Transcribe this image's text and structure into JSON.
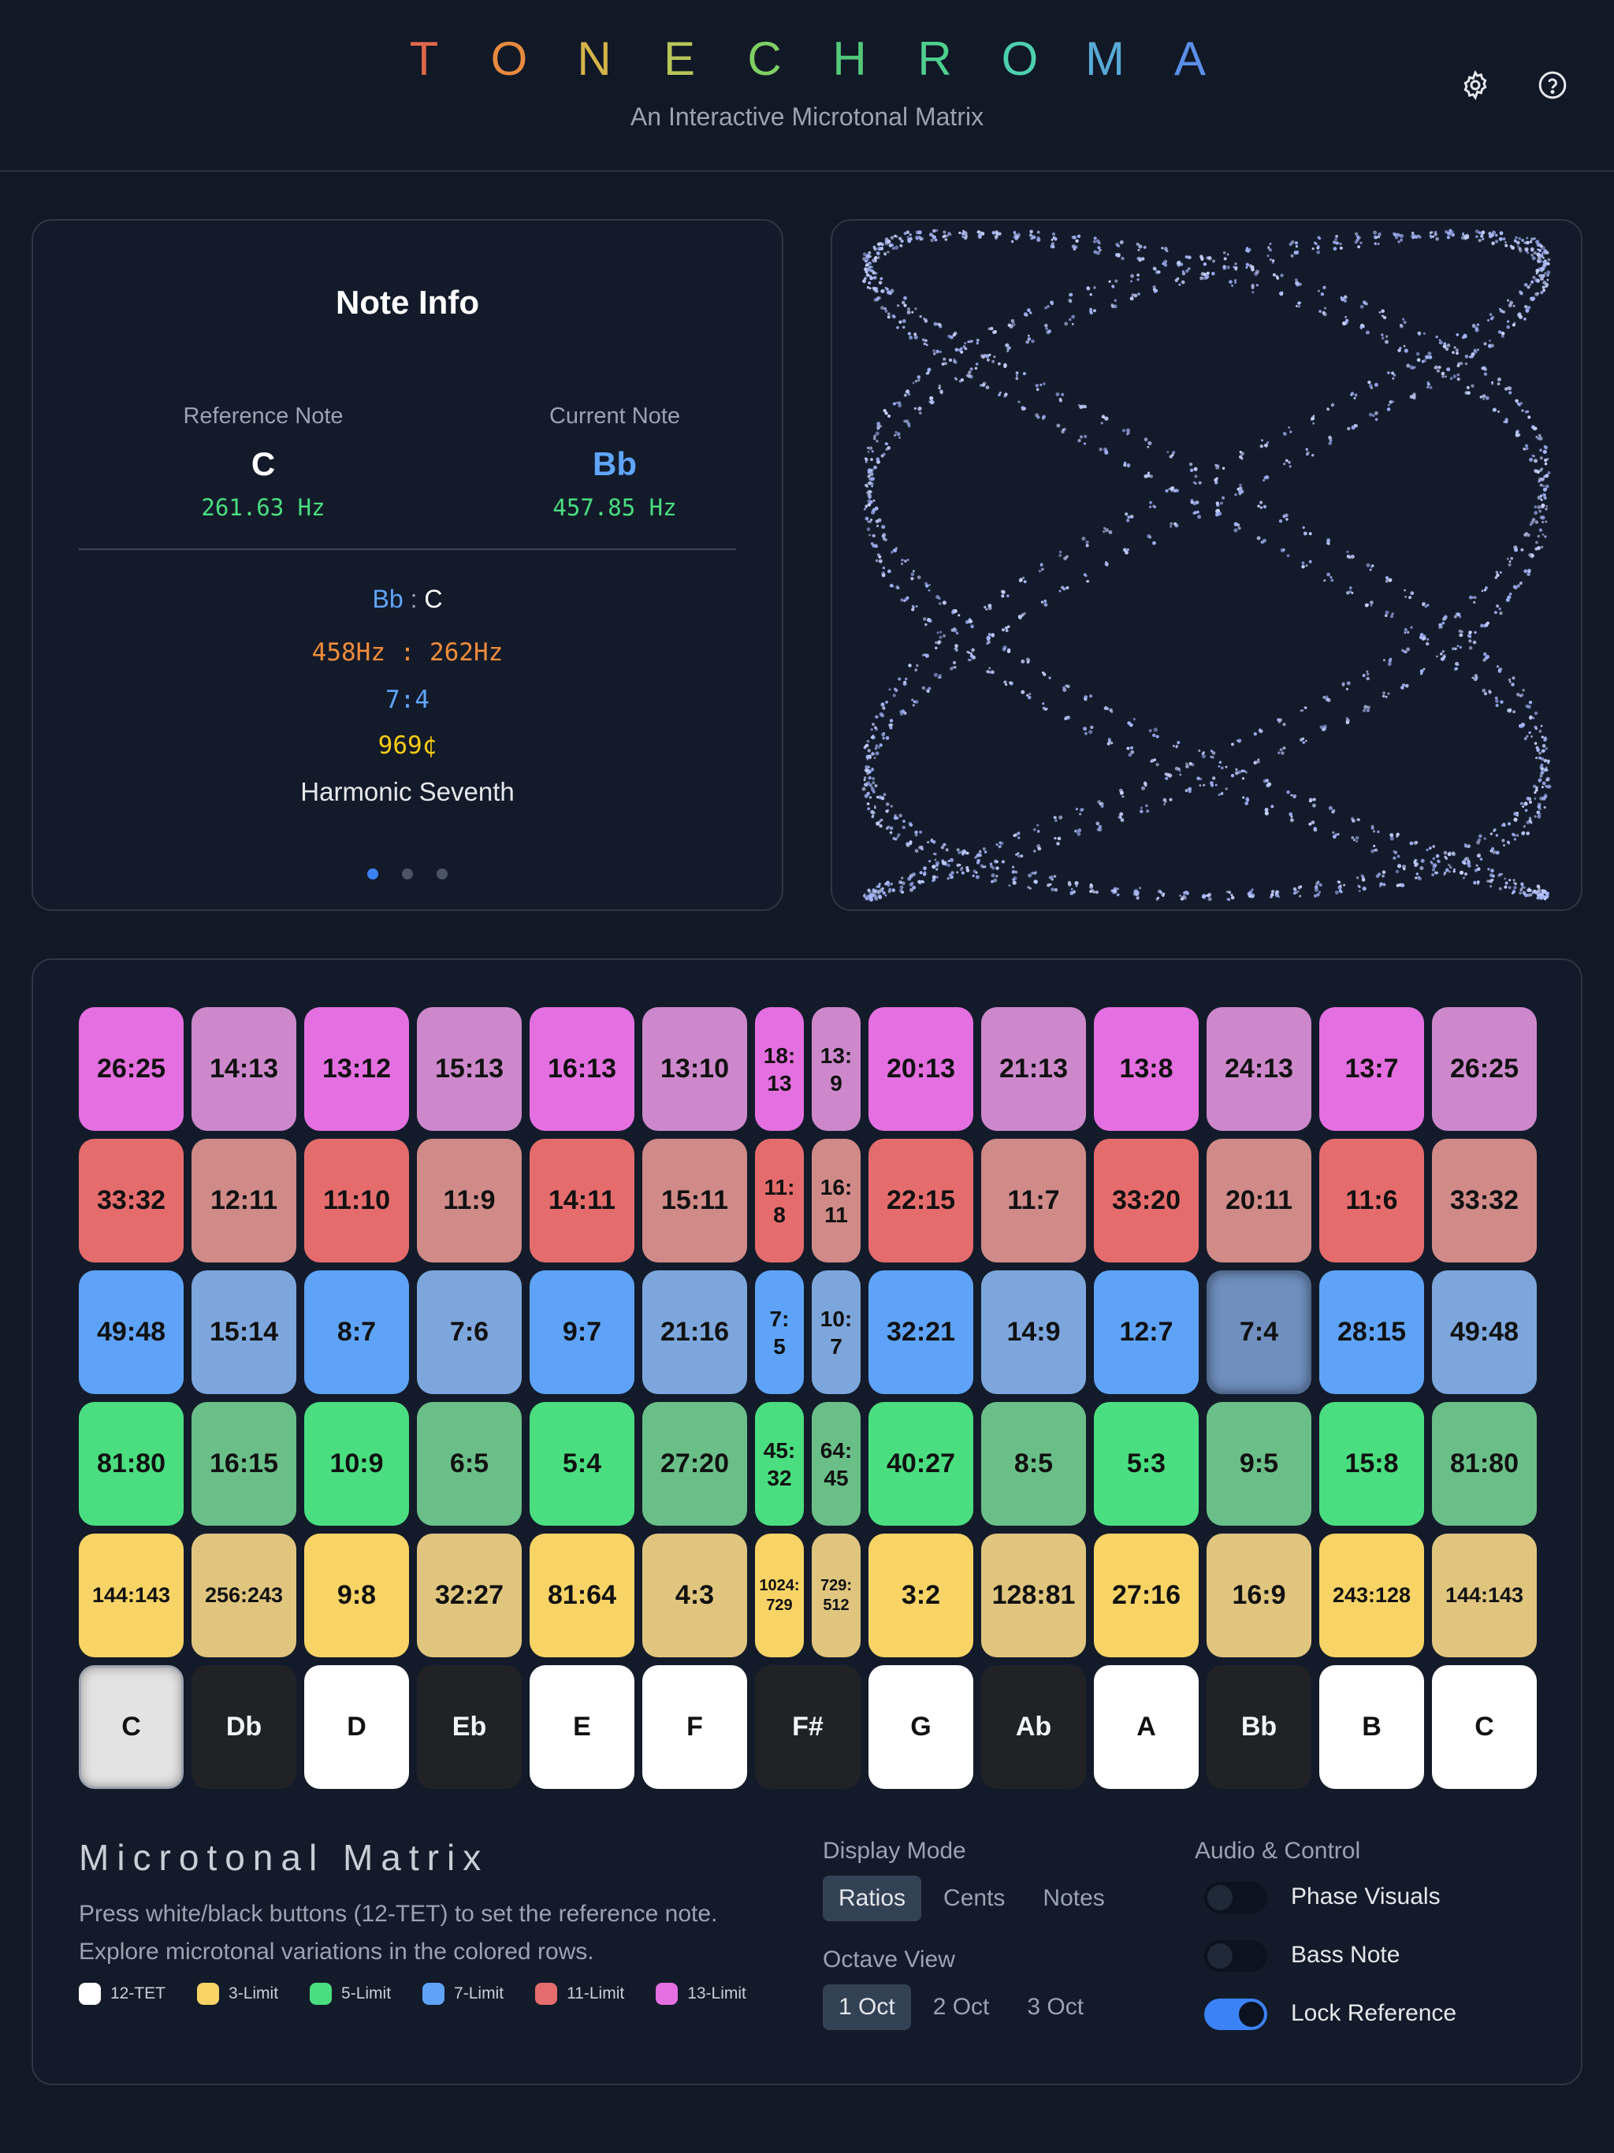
{
  "app": {
    "title_letters": [
      "T",
      "O",
      "N",
      "E",
      "C",
      "H",
      "R",
      "O",
      "M",
      "A"
    ],
    "title_colors": [
      "#e0674a",
      "#e58a3f",
      "#d4b44a",
      "#b7c659",
      "#7fcf63",
      "#52c97a",
      "#4fcf8f",
      "#4dcfae",
      "#58a9d6",
      "#5a8ee8"
    ],
    "subtitle": "An Interactive Microtonal Matrix",
    "icons": [
      "gear-icon",
      "help-icon"
    ]
  },
  "note_info": {
    "title": "Note Info",
    "reference_label": "Reference Note",
    "reference_note": "C",
    "reference_hz": "261.63 Hz",
    "current_label": "Current Note",
    "current_note": "Bb",
    "current_hz": "457.85 Hz",
    "pair_current": "Bb",
    "pair_sep": " : ",
    "pair_reference": "C",
    "freq_ratio": "458Hz : 262Hz",
    "ratio": "7:4",
    "cents": "969¢",
    "interval_name": "Harmonic Seventh",
    "page_count": 3,
    "active_page": 1
  },
  "matrix": {
    "rows": [
      {
        "limit": "13-Limit",
        "colors": [
          "#e46fe0",
          "#cd88cc"
        ],
        "cells": [
          "26:25",
          "14:13",
          "13:12",
          "15:13",
          "16:13",
          "13:10",
          "18:\n13",
          "13:\n9",
          "20:13",
          "21:13",
          "13:8",
          "24:13",
          "13:7",
          "26:25"
        ]
      },
      {
        "limit": "11-Limit",
        "colors": [
          "#e56c6c",
          "#d08a87"
        ],
        "cells": [
          "33:32",
          "12:11",
          "11:10",
          "11:9",
          "14:11",
          "15:11",
          "11:\n8",
          "16:\n11",
          "22:15",
          "11:7",
          "33:20",
          "20:11",
          "11:6",
          "33:32"
        ]
      },
      {
        "limit": "7-Limit",
        "colors": [
          "#5ea3f7",
          "#7ca6dc"
        ],
        "cells": [
          "49:48",
          "15:14",
          "8:7",
          "7:6",
          "9:7",
          "21:16",
          "7:\n5",
          "10:\n7",
          "32:21",
          "14:9",
          "12:7",
          "7:4",
          "28:15",
          "49:48"
        ]
      },
      {
        "limit": "5-Limit",
        "colors": [
          "#4ade80",
          "#6abf88"
        ],
        "cells": [
          "81:80",
          "16:15",
          "10:9",
          "6:5",
          "5:4",
          "27:20",
          "45:\n32",
          "64:\n45",
          "40:27",
          "8:5",
          "5:3",
          "9:5",
          "15:8",
          "81:80"
        ]
      },
      {
        "limit": "3-Limit",
        "colors": [
          "#f8d466",
          "#e0c57f"
        ],
        "cells": [
          "144:143",
          "256:243",
          "9:8",
          "32:27",
          "81:64",
          "4:3",
          "1024:\n729",
          "729:\n512",
          "3:2",
          "128:81",
          "27:16",
          "16:9",
          "243:128",
          "144:143"
        ]
      }
    ],
    "keys": [
      {
        "label": "C",
        "color": "white"
      },
      {
        "label": "Db",
        "color": "black"
      },
      {
        "label": "D",
        "color": "white"
      },
      {
        "label": "Eb",
        "color": "black"
      },
      {
        "label": "E",
        "color": "white"
      },
      {
        "label": "F",
        "color": "white"
      },
      {
        "label": "F#",
        "color": "black"
      },
      {
        "label": "G",
        "color": "white"
      },
      {
        "label": "Ab",
        "color": "black"
      },
      {
        "label": "A",
        "color": "white"
      },
      {
        "label": "Bb",
        "color": "black"
      },
      {
        "label": "B",
        "color": "white"
      },
      {
        "label": "C",
        "color": "white"
      }
    ],
    "selected_reference": "C",
    "selected_ratio": "7:4"
  },
  "controls": {
    "section_title": "Microtonal Matrix",
    "description_1": "Press white/black buttons (12-TET) to set the reference note.",
    "description_2": "Explore microtonal variations in the colored rows.",
    "legend": [
      {
        "label": "12-TET",
        "color": "#ffffff"
      },
      {
        "label": "3-Limit",
        "color": "#f8d466"
      },
      {
        "label": "5-Limit",
        "color": "#4ade80"
      },
      {
        "label": "7-Limit",
        "color": "#5ea3f7"
      },
      {
        "label": "11-Limit",
        "color": "#e56c6c"
      },
      {
        "label": "13-Limit",
        "color": "#e46fe0"
      }
    ],
    "display_mode_label": "Display Mode",
    "display_modes": [
      "Ratios",
      "Cents",
      "Notes"
    ],
    "display_mode_selected": "Ratios",
    "octave_label": "Octave View",
    "octave_options": [
      "1 Oct",
      "2 Oct",
      "3 Oct"
    ],
    "octave_selected": "1 Oct",
    "audio_label": "Audio & Control",
    "toggles": [
      {
        "label": "Phase Visuals",
        "on": false
      },
      {
        "label": "Bass Note",
        "on": false
      },
      {
        "label": "Lock Reference",
        "on": true
      }
    ]
  }
}
